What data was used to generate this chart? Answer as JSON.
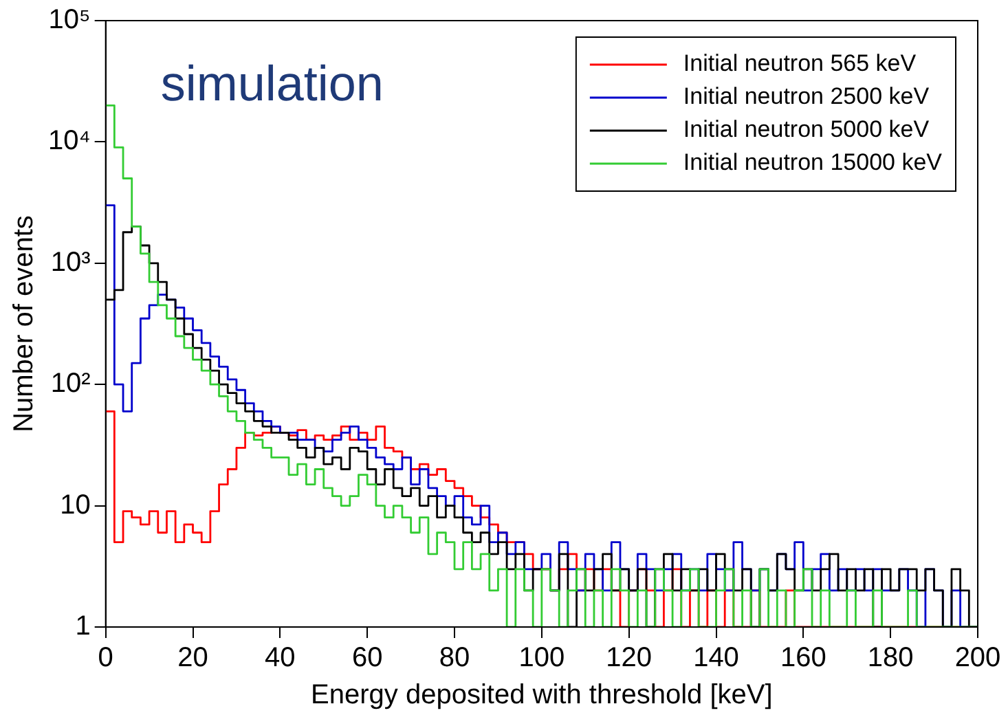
{
  "chart_data": {
    "type": "histogram",
    "xlabel": "Energy deposited with threshold [keV]",
    "ylabel": "Number of events",
    "annotations": [
      "simulation"
    ],
    "bins": [
      0,
      2,
      4,
      6,
      8,
      10,
      12,
      14,
      16,
      18,
      20,
      22,
      24,
      26,
      28,
      30,
      32,
      34,
      36,
      38,
      40,
      42,
      44,
      46,
      48,
      50,
      52,
      54,
      56,
      58,
      60,
      62,
      64,
      66,
      68,
      70,
      72,
      74,
      76,
      78,
      80,
      82,
      84,
      86,
      88,
      90,
      92,
      94,
      96,
      98,
      100,
      102,
      104,
      106,
      108,
      110,
      112,
      114,
      116,
      118,
      120,
      122,
      124,
      126,
      128,
      130,
      132,
      134,
      136,
      138,
      140,
      142,
      144,
      146,
      148,
      150,
      152,
      154,
      156,
      158,
      160,
      162,
      164,
      166,
      168,
      170,
      172,
      174,
      176,
      178,
      180,
      182,
      184,
      186,
      188,
      190,
      192,
      194,
      196,
      198,
      200
    ],
    "series": [
      {
        "name": "Initial neutron 565 keV",
        "color": "#ff0000",
        "values": [
          60,
          5,
          9,
          8,
          7,
          9,
          6,
          9,
          5,
          7,
          6,
          5,
          9,
          15,
          20,
          30,
          40,
          38,
          40,
          45,
          40,
          38,
          42,
          35,
          38,
          35,
          38,
          45,
          35,
          40,
          35,
          45,
          30,
          28,
          25,
          20,
          22,
          18,
          20,
          16,
          14,
          12,
          10,
          8,
          7,
          6,
          5,
          5,
          4,
          3,
          3,
          2,
          3,
          4,
          2,
          3,
          2,
          3,
          2,
          1,
          2,
          3,
          2,
          1,
          2,
          3,
          1,
          2,
          1,
          2,
          1,
          2,
          1,
          1,
          2,
          1,
          1,
          1,
          2,
          1,
          1,
          1,
          1,
          1,
          1,
          1,
          1,
          1,
          1,
          1,
          1,
          1,
          1,
          1,
          1,
          1,
          1,
          1,
          1,
          1
        ]
      },
      {
        "name": "Initial neutron 2500 keV",
        "color": "#0000cc",
        "values": [
          3000,
          100,
          60,
          150,
          350,
          450,
          550,
          500,
          430,
          350,
          280,
          220,
          170,
          140,
          110,
          90,
          70,
          60,
          50,
          45,
          40,
          40,
          35,
          35,
          30,
          28,
          35,
          40,
          45,
          35,
          30,
          25,
          22,
          20,
          25,
          15,
          20,
          14,
          12,
          10,
          12,
          8,
          7,
          10,
          5,
          6,
          4,
          5,
          3,
          3,
          4,
          2,
          5,
          3,
          2,
          4,
          3,
          2,
          5,
          3,
          2,
          4,
          3,
          2,
          3,
          4,
          2,
          3,
          2,
          4,
          3,
          2,
          5,
          3,
          2,
          3,
          2,
          4,
          3,
          5,
          2,
          3,
          4,
          2,
          3,
          2,
          3,
          2,
          3,
          2,
          2,
          3,
          2,
          1,
          3,
          2,
          1,
          2,
          1,
          1
        ]
      },
      {
        "name": "Initial neutron 5000 keV",
        "color": "#000000",
        "values": [
          500,
          600,
          1800,
          2000,
          1400,
          1000,
          700,
          500,
          350,
          260,
          200,
          160,
          130,
          100,
          85,
          70,
          60,
          50,
          45,
          40,
          40,
          35,
          30,
          25,
          30,
          22,
          25,
          20,
          30,
          28,
          20,
          15,
          20,
          14,
          12,
          14,
          10,
          12,
          8,
          10,
          8,
          6,
          5,
          6,
          4,
          5,
          3,
          4,
          2,
          3,
          3,
          2,
          4,
          1,
          3,
          2,
          3,
          4,
          2,
          3,
          2,
          3,
          1,
          3,
          4,
          2,
          3,
          2,
          3,
          2,
          4,
          3,
          2,
          3,
          1,
          3,
          2,
          4,
          3,
          2,
          3,
          2,
          3,
          4,
          2,
          3,
          2,
          3,
          1,
          3,
          2,
          3,
          3,
          2,
          3,
          2,
          1,
          3,
          2,
          1
        ]
      },
      {
        "name": "Initial neutron 15000 keV",
        "color": "#33cc33",
        "values": [
          20000,
          9000,
          5000,
          2000,
          1200,
          700,
          450,
          350,
          250,
          200,
          160,
          130,
          100,
          80,
          60,
          50,
          40,
          35,
          30,
          25,
          25,
          18,
          22,
          15,
          20,
          14,
          12,
          10,
          12,
          18,
          15,
          10,
          8,
          10,
          8,
          6,
          8,
          4,
          6,
          5,
          3,
          5,
          3,
          4,
          2,
          3,
          1,
          3,
          2,
          1,
          3,
          2,
          1,
          2,
          3,
          1,
          2,
          1,
          3,
          2,
          1,
          2,
          1,
          3,
          2,
          1,
          2,
          3,
          1,
          1,
          2,
          3,
          1,
          2,
          1,
          3,
          1,
          2,
          1,
          2,
          3,
          1,
          2,
          1,
          1,
          2,
          1,
          1,
          2,
          1,
          1,
          1,
          2,
          1,
          1,
          1,
          1,
          1,
          1,
          1
        ]
      }
    ],
    "xlim": [
      0,
      200
    ],
    "xticks": [
      0,
      20,
      40,
      60,
      80,
      100,
      120,
      140,
      160,
      180,
      200
    ],
    "ylim": [
      1,
      100000
    ],
    "yticks": [
      1,
      10,
      {
        "value": 100,
        "label": "10²"
      },
      {
        "value": 1000,
        "label": "10³"
      },
      {
        "value": 10000,
        "label": "10⁴"
      },
      {
        "value": 100000,
        "label": "10⁵"
      }
    ],
    "log": "y",
    "grid": false,
    "legend": "top right"
  }
}
